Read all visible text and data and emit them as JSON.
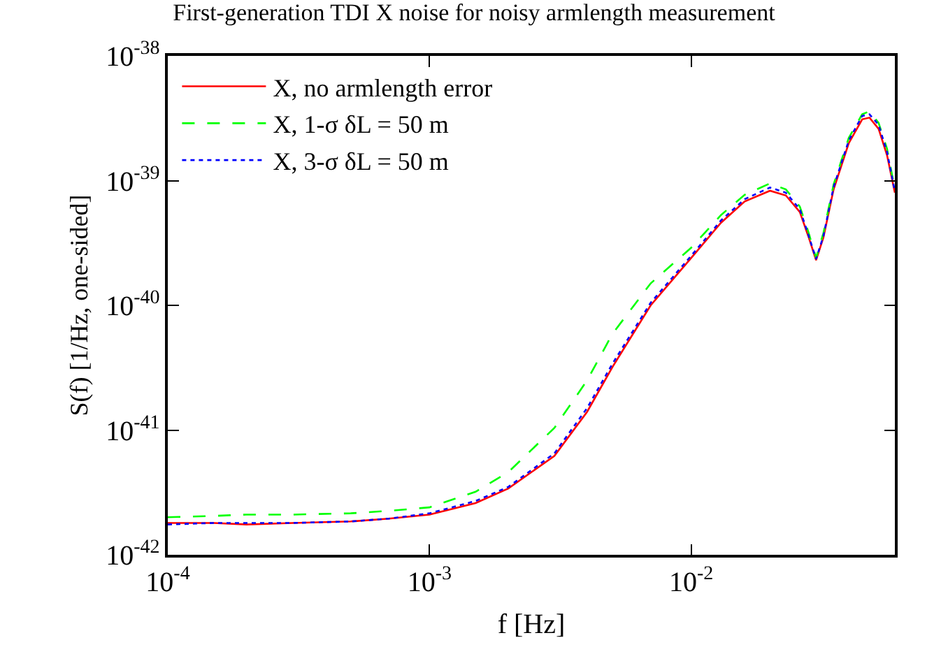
{
  "chart_data": {
    "type": "line",
    "title": "First-generation TDI X noise for noisy armlength measurement",
    "xlabel": "f [Hz]",
    "ylabel": "S(f) [1/Hz, one-sided]",
    "log": "xy",
    "legend": "top left",
    "marker": "none",
    "x": [
      0.0001,
      0.00015,
      0.0002,
      0.0003,
      0.0005,
      0.0007,
      0.001,
      0.0015,
      0.002,
      0.003,
      0.004,
      0.005,
      0.007,
      0.01,
      0.013,
      0.016,
      0.02,
      0.023,
      0.026,
      0.028,
      0.03,
      0.032,
      0.035,
      0.04,
      0.045,
      0.048,
      0.052,
      0.056,
      0.06
    ],
    "series": [
      {
        "name": "X, no armlength error",
        "color": "#ff0000",
        "line_style": "solid",
        "values": [
          1.8e-42,
          1.8e-42,
          1.75e-42,
          1.8e-42,
          1.85e-42,
          1.95e-42,
          2.1e-42,
          2.6e-42,
          3.4e-42,
          6.2e-42,
          1.4e-41,
          3.2e-41,
          1e-40,
          2.4e-40,
          4.6e-40,
          6.8e-40,
          8.3e-40,
          7.6e-40,
          5.6e-40,
          3.6e-40,
          2.3e-40,
          3.5e-40,
          8.5e-40,
          2e-39,
          3.1e-39,
          3.2e-39,
          2.6e-39,
          1.6e-39,
          8e-40
        ]
      },
      {
        "name": "X, 1-σ δL = 50 m",
        "color": "#00ff00",
        "line_style": "dashed",
        "values": [
          2e-42,
          2.05e-42,
          2.1e-42,
          2.1e-42,
          2.15e-42,
          2.25e-42,
          2.4e-42,
          3.2e-42,
          4.6e-42,
          1.04e-41,
          2.5e-41,
          5.9e-41,
          1.5e-40,
          2.9e-40,
          5.3e-40,
          7.7e-40,
          9.5e-40,
          8.5e-40,
          6.2e-40,
          3.9e-40,
          2.4e-40,
          3.8e-40,
          9.3e-40,
          2.2e-39,
          3.4e-39,
          3.6e-39,
          2.9e-39,
          1.8e-39,
          8.5e-40
        ]
      },
      {
        "name": "X, 3-σ δL = 50 m",
        "color": "#0000ff",
        "line_style": "dotted",
        "values": [
          1.75e-42,
          1.8e-42,
          1.8e-42,
          1.8e-42,
          1.85e-42,
          1.95e-42,
          2.15e-42,
          2.7e-42,
          3.5e-42,
          6.5e-42,
          1.5e-41,
          3.4e-41,
          1.05e-40,
          2.5e-40,
          4.8e-40,
          7.1e-40,
          8.8e-40,
          8e-40,
          5.9e-40,
          3.7e-40,
          2.35e-40,
          3.6e-40,
          8.9e-40,
          2.1e-39,
          3.3e-39,
          3.4e-39,
          2.8e-39,
          1.7e-39,
          8.2e-40
        ]
      }
    ],
    "xlim": [
      0.0001,
      0.06
    ],
    "xticks": [
      {
        "value": 0.0001,
        "label": "10$^{-4}$"
      },
      {
        "value": 0.001,
        "label": "10$^{-3}$"
      },
      {
        "value": 0.01,
        "label": "10$^{-2}$"
      }
    ],
    "ylim": [
      1e-42,
      1e-38
    ],
    "yticks": [
      {
        "value": 1e-42,
        "label": "10$^{-42}$"
      },
      {
        "value": 1e-41,
        "label": "10$^{-41}$"
      },
      {
        "value": 1e-40,
        "label": "10$^{-40}$"
      },
      {
        "value": 1e-39,
        "label": "10$^{-39}$"
      },
      {
        "value": 1e-38,
        "label": "10$^{-38}$"
      }
    ]
  }
}
